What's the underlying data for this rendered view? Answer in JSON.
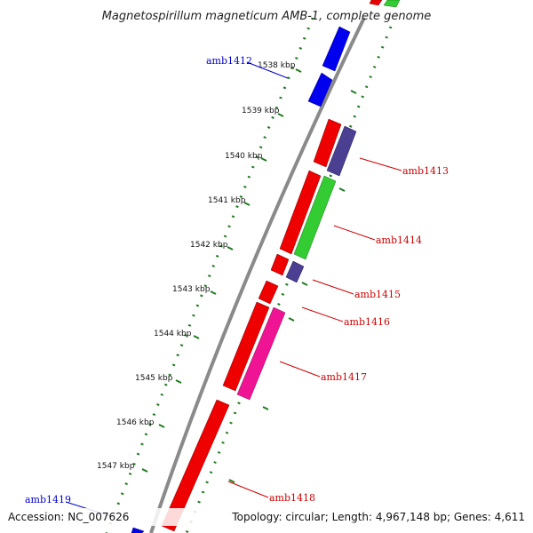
{
  "title": "Magnetospirillum magneticum AMB-1, complete genome",
  "footer": {
    "accession": "Accession: NC_007626",
    "topology": "Topology: circular; Length: 4,967,148 bp; Genes: 4,611"
  },
  "colors": {
    "backbone": "#8a8a8a",
    "tick_ring": "#1f7a1f",
    "label_forward": "#0000cc",
    "label_reverse": "#cc0000"
  },
  "kbp_ticks": [
    "1538 kbp",
    "1539 kbp",
    "1540 kbp",
    "1541 kbp",
    "1542 kbp",
    "1543 kbp",
    "1544 kbp",
    "1545 kbp",
    "1546 kbp",
    "1547 kbp"
  ],
  "gene_labels": [
    {
      "text": "amb1412",
      "strand": "forward"
    },
    {
      "text": "amb1413",
      "strand": "reverse"
    },
    {
      "text": "amb1414",
      "strand": "reverse"
    },
    {
      "text": "amb1415",
      "strand": "reverse"
    },
    {
      "text": "amb1416",
      "strand": "reverse"
    },
    {
      "text": "amb1417",
      "strand": "reverse"
    },
    {
      "text": "amb1418",
      "strand": "reverse"
    },
    {
      "text": "amb1419",
      "strand": "forward"
    }
  ],
  "features": [
    {
      "track": "outer",
      "color": "blue",
      "strand": "forward"
    },
    {
      "track": "outer",
      "color": "blue",
      "strand": "forward"
    },
    {
      "track": "outer",
      "color": "red",
      "strand": "reverse"
    },
    {
      "track": "outer",
      "color": "red",
      "strand": "reverse"
    },
    {
      "track": "outer",
      "color": "red",
      "strand": "reverse"
    },
    {
      "track": "outer",
      "color": "red",
      "strand": "reverse"
    },
    {
      "track": "outer",
      "color": "red",
      "strand": "reverse"
    },
    {
      "track": "outer",
      "color": "red",
      "strand": "reverse"
    },
    {
      "track": "outer",
      "color": "blue",
      "strand": "forward"
    },
    {
      "track": "inner",
      "color": "slateblue",
      "strand": "reverse"
    },
    {
      "track": "inner",
      "color": "green",
      "strand": "reverse"
    },
    {
      "track": "inner",
      "color": "slateblue",
      "strand": "reverse"
    },
    {
      "track": "inner",
      "color": "pink",
      "strand": "reverse"
    },
    {
      "track": "inner",
      "color": "green",
      "strand": "reverse"
    }
  ]
}
